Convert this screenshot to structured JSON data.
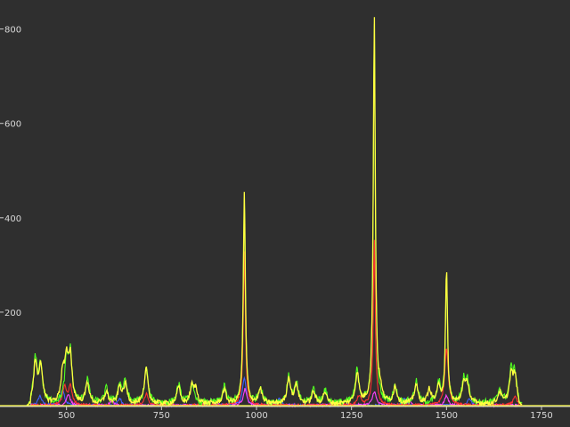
{
  "chart_data": {
    "type": "line",
    "title": "",
    "xlabel": "",
    "ylabel": "",
    "xlim": [
      325,
      1825
    ],
    "ylim": [
      0,
      820
    ],
    "x_ticks": [
      500,
      750,
      1000,
      1250,
      1500,
      1750
    ],
    "x_tick_labels": [
      "500",
      "750",
      "1000",
      "1250",
      "1500",
      "1750"
    ],
    "y_ticks": [
      200,
      400,
      600,
      800
    ],
    "y_tick_labels": [
      "200",
      "400",
      "600",
      "800"
    ],
    "grid": false,
    "legend": "none",
    "background": "#2f2f2f",
    "series": [
      {
        "color": "#ffff40",
        "peaks": [
          [
            418,
            85
          ],
          [
            432,
            80
          ],
          [
            490,
            60
          ],
          [
            500,
            80
          ],
          [
            510,
            95
          ],
          [
            555,
            45
          ],
          [
            605,
            25
          ],
          [
            640,
            35
          ],
          [
            655,
            40
          ],
          [
            710,
            75
          ],
          [
            795,
            35
          ],
          [
            830,
            35
          ],
          [
            840,
            30
          ],
          [
            915,
            30
          ],
          [
            968,
            450
          ],
          [
            1010,
            30
          ],
          [
            1085,
            55
          ],
          [
            1105,
            40
          ],
          [
            1150,
            25
          ],
          [
            1180,
            25
          ],
          [
            1265,
            65
          ],
          [
            1310,
            820
          ],
          [
            1325,
            25
          ],
          [
            1365,
            35
          ],
          [
            1420,
            40
          ],
          [
            1455,
            30
          ],
          [
            1480,
            35
          ],
          [
            1500,
            280
          ],
          [
            1545,
            40
          ],
          [
            1555,
            40
          ],
          [
            1640,
            25
          ],
          [
            1670,
            60
          ],
          [
            1680,
            55
          ]
        ]
      },
      {
        "color": "#50ff20",
        "peaks": [
          [
            418,
            90
          ],
          [
            432,
            80
          ],
          [
            500,
            85
          ],
          [
            510,
            100
          ],
          [
            555,
            50
          ],
          [
            605,
            30
          ],
          [
            640,
            40
          ],
          [
            655,
            45
          ],
          [
            710,
            75
          ],
          [
            795,
            40
          ],
          [
            830,
            40
          ],
          [
            915,
            35
          ],
          [
            968,
            440
          ],
          [
            1010,
            35
          ],
          [
            1085,
            55
          ],
          [
            1105,
            40
          ],
          [
            1150,
            30
          ],
          [
            1180,
            28
          ],
          [
            1265,
            70
          ],
          [
            1310,
            800
          ],
          [
            1365,
            35
          ],
          [
            1420,
            45
          ],
          [
            1480,
            40
          ],
          [
            1500,
            270
          ],
          [
            1545,
            45
          ],
          [
            1555,
            45
          ],
          [
            1640,
            30
          ],
          [
            1670,
            65
          ],
          [
            1680,
            60
          ]
        ]
      },
      {
        "color": "#ff3030",
        "peaks": [
          [
            495,
            40
          ],
          [
            510,
            40
          ],
          [
            968,
            330
          ],
          [
            1310,
            350
          ],
          [
            1500,
            120
          ],
          [
            1270,
            20
          ],
          [
            1680,
            20
          ],
          [
            710,
            25
          ]
        ]
      },
      {
        "color": "#4060ff",
        "peaks": [
          [
            490,
            35
          ],
          [
            968,
            60
          ],
          [
            1060,
            15
          ],
          [
            1390,
            15
          ],
          [
            1560,
            15
          ],
          [
            430,
            20
          ],
          [
            640,
            15
          ]
        ]
      },
      {
        "color": "#ff40ff",
        "peaks": [
          [
            505,
            25
          ],
          [
            970,
            35
          ],
          [
            1310,
            30
          ],
          [
            1500,
            20
          ],
          [
            620,
            10
          ],
          [
            880,
            12
          ],
          [
            1400,
            10
          ]
        ]
      }
    ]
  }
}
